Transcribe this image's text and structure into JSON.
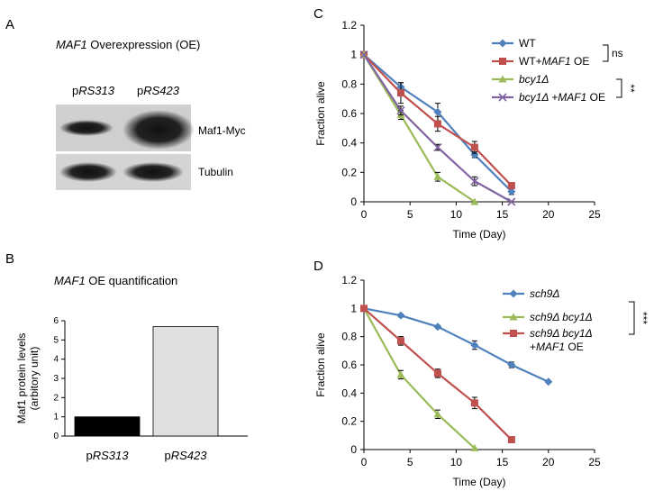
{
  "panel_labels": {
    "a": "A",
    "b": "B",
    "c": "C",
    "d": "D"
  },
  "blot": {
    "title_gene": "MAF1",
    "title_rest": "Overexpression (OE)",
    "lane_1_prefix": "p",
    "lane_1_italic": "RS313",
    "lane_2_prefix": "p",
    "lane_2_italic": "RS423",
    "band_1_label": "Maf1-Myc",
    "band_2_label": "Tubulin"
  },
  "chart_data": [
    {
      "id": "quant",
      "type": "bar",
      "title_gene": "MAF1",
      "title_rest": "OE quantification",
      "ylabel_line1": "Maf1 protein levels",
      "ylabel_line2": "(arbitory unit)",
      "ylim": [
        0,
        6
      ],
      "yticks": [
        "0",
        "1",
        "2",
        "3",
        "4",
        "5",
        "6"
      ],
      "categories": [
        {
          "prefix": "p",
          "italic": "RS313"
        },
        {
          "prefix": "p",
          "italic": "RS423"
        }
      ],
      "values": [
        1.0,
        5.7
      ],
      "colors": [
        "#000000",
        "#e0e0e0"
      ]
    },
    {
      "id": "survival_c",
      "type": "line",
      "xlabel": "Time (Day)",
      "ylabel": "Fraction alive",
      "xlim": [
        0,
        25
      ],
      "ylim": [
        0,
        1.2
      ],
      "xticks": [
        "0",
        "5",
        "10",
        "15",
        "20",
        "25"
      ],
      "yticks": [
        "0",
        "0.2",
        "0.4",
        "0.6",
        "0.8",
        "1",
        "1.2"
      ],
      "series": [
        {
          "parts": [
            {
              "t": "WT",
              "i": false
            }
          ],
          "color": "#4f81bd",
          "marker": "diamond",
          "x": [
            0,
            4,
            8,
            12,
            16
          ],
          "values": [
            1.0,
            0.78,
            0.61,
            0.32,
            0.07
          ],
          "err": [
            0,
            0.03,
            0.06,
            0.02,
            0.02
          ]
        },
        {
          "parts": [
            {
              "t": "WT+",
              "i": false
            },
            {
              "t": "MAF1",
              "i": true
            },
            {
              "t": " OE",
              "i": false
            }
          ],
          "color": "#c0504d",
          "marker": "square",
          "x": [
            0,
            4,
            8,
            12,
            16
          ],
          "values": [
            1.0,
            0.74,
            0.53,
            0.37,
            0.11
          ],
          "err": [
            0,
            0.07,
            0.05,
            0.04,
            0.01
          ]
        },
        {
          "parts": [
            {
              "t": "bcy1Δ",
              "i": true
            }
          ],
          "color": "#9bbb59",
          "marker": "triangle",
          "x": [
            0,
            4,
            8,
            12
          ],
          "values": [
            1.0,
            0.59,
            0.17,
            0.0
          ],
          "err": [
            0,
            0.03,
            0.03,
            0
          ]
        },
        {
          "parts": [
            {
              "t": "bcy1Δ +MAF1",
              "i": true
            },
            {
              "t": " OE",
              "i": false
            }
          ],
          "color": "#8064a2",
          "marker": "x",
          "x": [
            0,
            4,
            8,
            12,
            16
          ],
          "values": [
            1.0,
            0.62,
            0.37,
            0.14,
            0.0
          ],
          "err": [
            0,
            0.03,
            0.02,
            0.03,
            0
          ]
        }
      ],
      "sig": [
        "ns",
        "**"
      ]
    },
    {
      "id": "survival_d",
      "type": "line",
      "xlabel": "Time (Day)",
      "ylabel": "Fraction alive",
      "xlim": [
        0,
        25
      ],
      "ylim": [
        0,
        1.2
      ],
      "xticks": [
        "0",
        "5",
        "10",
        "15",
        "20",
        "25"
      ],
      "yticks": [
        "0",
        "0.2",
        "0.4",
        "0.6",
        "0.8",
        "1",
        "1.2"
      ],
      "series": [
        {
          "parts": [
            {
              "t": "sch9Δ",
              "i": true
            }
          ],
          "color": "#4f81bd",
          "marker": "diamond",
          "x": [
            0,
            4,
            8,
            12,
            16,
            20
          ],
          "values": [
            1.0,
            0.95,
            0.87,
            0.74,
            0.6,
            0.48
          ],
          "err": [
            0,
            0.01,
            0.01,
            0.03,
            0.02,
            0
          ]
        },
        {
          "parts": [
            {
              "t": "sch9Δ bcy1Δ",
              "i": true
            }
          ],
          "color": "#9bbb59",
          "marker": "triangle",
          "x": [
            0,
            4,
            8,
            12
          ],
          "values": [
            1.0,
            0.53,
            0.25,
            0.01
          ],
          "err": [
            0,
            0.03,
            0.03,
            0
          ]
        },
        {
          "parts": [
            {
              "t": "sch9Δ bcy1Δ",
              "i": true
            }
          ],
          "parts2": [
            {
              "t": "+",
              "i": false
            },
            {
              "t": "MAF1",
              "i": true
            },
            {
              "t": " OE",
              "i": false
            }
          ],
          "color": "#c0504d",
          "marker": "square",
          "x": [
            0,
            4,
            8,
            12,
            16
          ],
          "values": [
            1.0,
            0.77,
            0.54,
            0.33,
            0.07
          ],
          "err": [
            0,
            0.03,
            0.03,
            0.04,
            0
          ]
        }
      ],
      "sig": [
        "***"
      ]
    }
  ]
}
